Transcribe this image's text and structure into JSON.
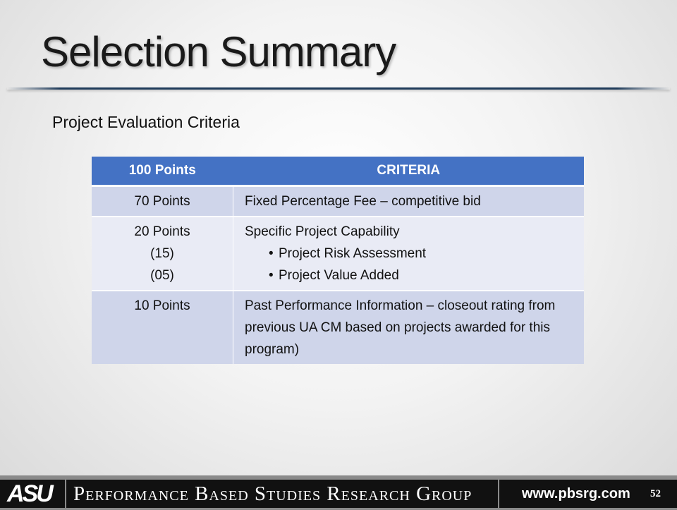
{
  "slide": {
    "title": "Selection Summary",
    "subtitle": "Project Evaluation Criteria"
  },
  "table": {
    "headers": [
      "100 Points",
      "CRITERIA"
    ],
    "rows": [
      {
        "points": [
          "70 Points"
        ],
        "criteria": "Fixed Percentage Fee – competitive bid",
        "bullets": []
      },
      {
        "points": [
          "20 Points",
          "(15)",
          "(05)"
        ],
        "criteria": "Specific Project Capability",
        "bullets": [
          "Project Risk Assessment",
          "Project Value Added"
        ]
      },
      {
        "points": [
          "10 Points"
        ],
        "criteria": "Past Performance Information – closeout rating from previous UA CM based on projects awarded for this program)",
        "bullets": []
      }
    ]
  },
  "footer": {
    "logo": "ASU",
    "org": "Performance Based Studies Research Group",
    "url": "www.pbsrg.com",
    "page": "52"
  },
  "colors": {
    "header_blue": "#4472c4",
    "row_dark": "#cfd5ea",
    "row_light": "#e9ebf5",
    "footer_bg": "#111111"
  }
}
